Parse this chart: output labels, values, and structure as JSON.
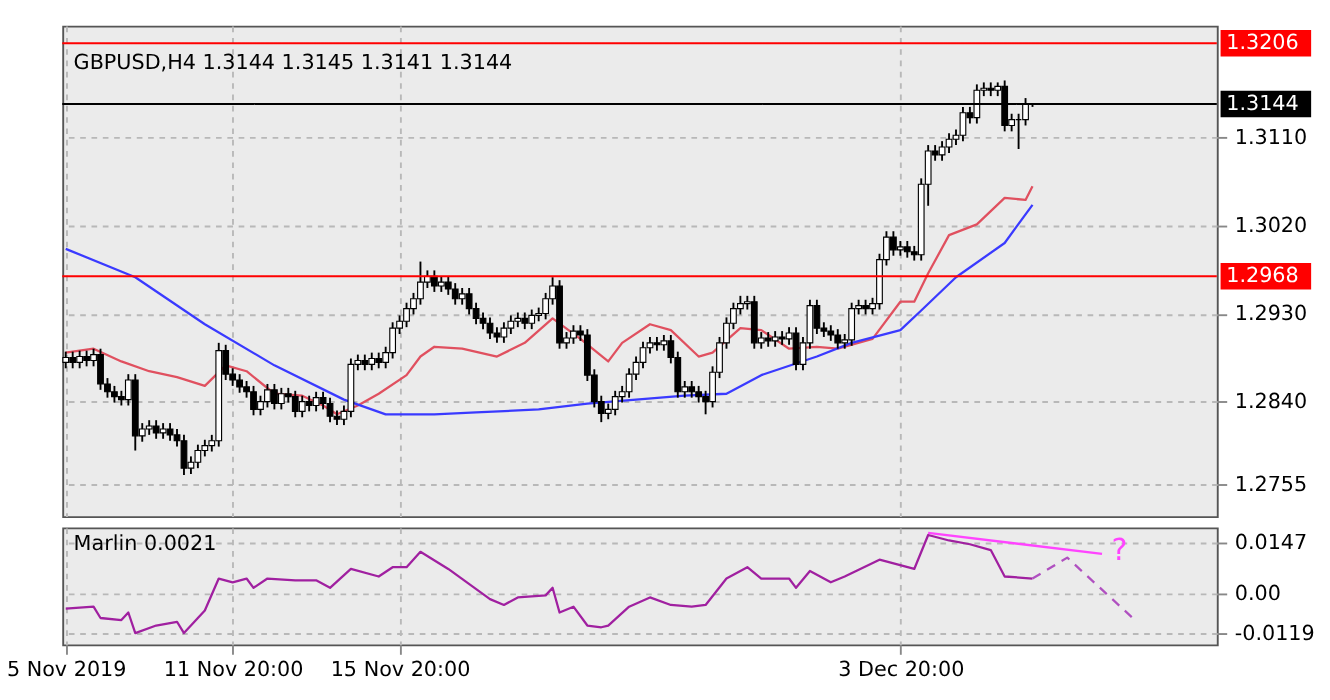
{
  "chart_data": [
    {
      "type": "candlestick",
      "title": "GBPUSD,H4  1.3144 1.3145 1.3141 1.3144",
      "categories": [
        null,
        null,
        null,
        null,
        null,
        null,
        null,
        null,
        null,
        null,
        null,
        null,
        null,
        null,
        null,
        null,
        null,
        null,
        null,
        null,
        null,
        null,
        null,
        null,
        null,
        null,
        null,
        null,
        null,
        null,
        null,
        null,
        null,
        null,
        null,
        null,
        null,
        null,
        null,
        null,
        null,
        null,
        null,
        null,
        null,
        null,
        null,
        null,
        null,
        null,
        null,
        null,
        null,
        null,
        null,
        null,
        null,
        null,
        null,
        null,
        null,
        null,
        null,
        null,
        null,
        null,
        null,
        null,
        null,
        null,
        null,
        null,
        null,
        null,
        null,
        null,
        null,
        null,
        null,
        null,
        null,
        null,
        null,
        null,
        null,
        null,
        null,
        null,
        null,
        null,
        null,
        null,
        null,
        null,
        null,
        null,
        null,
        null,
        null,
        null,
        null,
        null,
        null,
        null,
        null,
        null,
        null,
        null,
        null,
        null,
        null,
        null,
        null,
        null,
        null,
        null,
        null,
        null,
        null,
        null,
        null,
        null,
        null,
        null,
        null,
        null,
        null,
        null,
        null,
        null,
        null,
        null,
        null,
        null,
        null,
        null,
        null,
        null,
        null,
        null,
        null,
        null,
        null,
        null,
        null,
        null,
        null,
        null,
        null,
        null,
        null,
        null,
        null,
        null,
        null,
        null,
        null,
        null,
        null,
        null,
        null,
        null,
        null,
        null,
        null,
        null
      ],
      "ohlc": [
        [
          1.288,
          1.2891,
          1.2874,
          1.2885
        ],
        [
          1.2885,
          1.2891,
          1.2874,
          1.288
        ],
        [
          1.288,
          1.2892,
          1.2874,
          1.2886
        ],
        [
          1.2886,
          1.2892,
          1.2876,
          1.2882
        ],
        [
          1.2882,
          1.2894,
          1.2876,
          1.2888
        ],
        [
          1.2888,
          1.2894,
          1.2852,
          1.2858
        ],
        [
          1.2858,
          1.2864,
          1.2844,
          1.285
        ],
        [
          1.285,
          1.2856,
          1.2839,
          1.2845
        ],
        [
          1.2845,
          1.2851,
          1.2836,
          1.2842
        ],
        [
          1.2842,
          1.2868,
          1.2836,
          1.2862
        ],
        [
          1.2862,
          1.2868,
          1.279,
          1.2805
        ],
        [
          1.2805,
          1.2818,
          1.2799,
          1.2812
        ],
        [
          1.2812,
          1.2821,
          1.2806,
          1.2815
        ],
        [
          1.2815,
          1.2821,
          1.2802,
          1.2808
        ],
        [
          1.2808,
          1.2818,
          1.2802,
          1.2812
        ],
        [
          1.2812,
          1.2818,
          1.28,
          1.2806
        ],
        [
          1.2806,
          1.2812,
          1.2794,
          1.28
        ],
        [
          1.28,
          1.2806,
          1.2765,
          1.2772
        ],
        [
          1.2772,
          1.2784,
          1.2766,
          1.2778
        ],
        [
          1.2778,
          1.2796,
          1.2772,
          1.279
        ],
        [
          1.279,
          1.2801,
          1.2784,
          1.2795
        ],
        [
          1.2795,
          1.2806,
          1.2789,
          1.28
        ],
        [
          1.28,
          1.29,
          1.2794,
          1.2892
        ],
        [
          1.2892,
          1.2898,
          1.2862,
          1.2868
        ],
        [
          1.2868,
          1.2874,
          1.2856,
          1.2862
        ],
        [
          1.2862,
          1.2868,
          1.2849,
          1.2855
        ],
        [
          1.2855,
          1.2861,
          1.2844,
          1.285
        ],
        [
          1.285,
          1.2856,
          1.2826,
          1.2832
        ],
        [
          1.2832,
          1.2846,
          1.2826,
          1.284
        ],
        [
          1.284,
          1.2858,
          1.2834,
          1.2852
        ],
        [
          1.2852,
          1.2858,
          1.2832,
          1.2838
        ],
        [
          1.2838,
          1.2854,
          1.2832,
          1.2848
        ],
        [
          1.2848,
          1.2854,
          1.2839,
          1.2845
        ],
        [
          1.2845,
          1.2851,
          1.2824,
          1.283
        ],
        [
          1.283,
          1.2846,
          1.2824,
          1.284
        ],
        [
          1.284,
          1.2846,
          1.283,
          1.2836
        ],
        [
          1.2836,
          1.285,
          1.283,
          1.2844
        ],
        [
          1.2844,
          1.285,
          1.2832,
          1.2838
        ],
        [
          1.2838,
          1.2844,
          1.2819,
          1.2825
        ],
        [
          1.2825,
          1.2831,
          1.2816,
          1.2822
        ],
        [
          1.2822,
          1.2836,
          1.2816,
          1.283
        ],
        [
          1.283,
          1.2884,
          1.2824,
          1.2878
        ],
        [
          1.2878,
          1.2888,
          1.2872,
          1.2882
        ],
        [
          1.2882,
          1.2888,
          1.2872,
          1.2878
        ],
        [
          1.2878,
          1.289,
          1.2872,
          1.2884
        ],
        [
          1.2884,
          1.289,
          1.2874,
          1.288
        ],
        [
          1.288,
          1.2896,
          1.2874,
          1.289
        ],
        [
          1.289,
          1.2921,
          1.2884,
          1.2915
        ],
        [
          1.2915,
          1.2928,
          1.2909,
          1.2922
        ],
        [
          1.2922,
          1.2941,
          1.2916,
          1.2935
        ],
        [
          1.2935,
          1.2951,
          1.2929,
          1.2945
        ],
        [
          1.2945,
          1.2983,
          1.2939,
          1.2962
        ],
        [
          1.2962,
          1.2974,
          1.2956,
          1.2968
        ],
        [
          1.2968,
          1.2974,
          1.2952,
          1.2958
        ],
        [
          1.2958,
          1.2968,
          1.2952,
          1.2962
        ],
        [
          1.2962,
          1.2968,
          1.2949,
          1.2955
        ],
        [
          1.2955,
          1.2961,
          1.2939,
          1.2945
        ],
        [
          1.2945,
          1.2956,
          1.2939,
          1.295
        ],
        [
          1.295,
          1.2956,
          1.2929,
          1.2935
        ],
        [
          1.2935,
          1.2941,
          1.2919,
          1.2925
        ],
        [
          1.2925,
          1.2931,
          1.2914,
          1.292
        ],
        [
          1.292,
          1.2926,
          1.2904,
          1.291
        ],
        [
          1.291,
          1.2916,
          1.29,
          1.2906
        ],
        [
          1.2906,
          1.2921,
          1.29,
          1.2915
        ],
        [
          1.2915,
          1.2928,
          1.2909,
          1.2922
        ],
        [
          1.2922,
          1.2931,
          1.2916,
          1.2925
        ],
        [
          1.2925,
          1.2931,
          1.2914,
          1.292
        ],
        [
          1.292,
          1.2934,
          1.2914,
          1.2928
        ],
        [
          1.2928,
          1.2936,
          1.2922,
          1.293
        ],
        [
          1.293,
          1.2951,
          1.2924,
          1.2945
        ],
        [
          1.2945,
          1.2967,
          1.2939,
          1.2958
        ],
        [
          1.2958,
          1.2964,
          1.2894,
          1.29
        ],
        [
          1.29,
          1.2911,
          1.2894,
          1.2905
        ],
        [
          1.2905,
          1.2918,
          1.2899,
          1.2912
        ],
        [
          1.2912,
          1.2918,
          1.2902,
          1.2908
        ],
        [
          1.2908,
          1.2914,
          1.2861,
          1.2867
        ],
        [
          1.2867,
          1.2873,
          1.2834,
          1.284
        ],
        [
          1.284,
          1.2846,
          1.2819,
          1.2828
        ],
        [
          1.2828,
          1.2838,
          1.2822,
          1.2832
        ],
        [
          1.2832,
          1.2851,
          1.2826,
          1.2845
        ],
        [
          1.2845,
          1.2856,
          1.2839,
          1.285
        ],
        [
          1.285,
          1.2874,
          1.2844,
          1.2868
        ],
        [
          1.2868,
          1.2886,
          1.2862,
          1.288
        ],
        [
          1.288,
          1.2901,
          1.2874,
          1.2895
        ],
        [
          1.2895,
          1.2906,
          1.2889,
          1.29
        ],
        [
          1.29,
          1.2906,
          1.2892,
          1.2898
        ],
        [
          1.2898,
          1.2908,
          1.2892,
          1.2902
        ],
        [
          1.2902,
          1.2908,
          1.2879,
          1.2885
        ],
        [
          1.2885,
          1.2891,
          1.2844,
          1.285
        ],
        [
          1.285,
          1.2861,
          1.2844,
          1.2855
        ],
        [
          1.2855,
          1.2861,
          1.2844,
          1.285
        ],
        [
          1.285,
          1.2856,
          1.2839,
          1.2845
        ],
        [
          1.2845,
          1.2851,
          1.2827,
          1.284
        ],
        [
          1.284,
          1.2876,
          1.2834,
          1.287
        ],
        [
          1.287,
          1.2906,
          1.2864,
          1.29
        ],
        [
          1.29,
          1.2926,
          1.2894,
          1.292
        ],
        [
          1.292,
          1.2941,
          1.2914,
          1.2935
        ],
        [
          1.2935,
          1.2948,
          1.2929,
          1.294
        ],
        [
          1.294,
          1.2948,
          1.2934,
          1.2942
        ],
        [
          1.2942,
          1.2948,
          1.2894,
          1.29
        ],
        [
          1.29,
          1.2911,
          1.2894,
          1.2905
        ],
        [
          1.2905,
          1.2911,
          1.2896,
          1.2902
        ],
        [
          1.2902,
          1.2912,
          1.2896,
          1.2906
        ],
        [
          1.2906,
          1.2912,
          1.2898,
          1.2904
        ],
        [
          1.2904,
          1.2916,
          1.2898,
          1.291
        ],
        [
          1.291,
          1.2916,
          1.2872,
          1.2878
        ],
        [
          1.2878,
          1.2906,
          1.2872,
          1.29
        ],
        [
          1.29,
          1.2944,
          1.2894,
          1.2938
        ],
        [
          1.2938,
          1.2944,
          1.2909,
          1.2915
        ],
        [
          1.2915,
          1.2921,
          1.2906,
          1.2912
        ],
        [
          1.2912,
          1.2918,
          1.2902,
          1.2908
        ],
        [
          1.2908,
          1.2914,
          1.2894,
          1.29
        ],
        [
          1.29,
          1.2909,
          1.2894,
          1.2903
        ],
        [
          1.2903,
          1.2941,
          1.2897,
          1.2935
        ],
        [
          1.2935,
          1.2944,
          1.2929,
          1.2938
        ],
        [
          1.2938,
          1.2944,
          1.2929,
          1.2935
        ],
        [
          1.2935,
          1.2946,
          1.2929,
          1.294
        ],
        [
          1.294,
          1.2991,
          1.2934,
          1.2985
        ],
        [
          1.2985,
          1.3014,
          1.2979,
          1.3008
        ],
        [
          1.3008,
          1.3014,
          1.2989,
          1.2995
        ],
        [
          1.2995,
          1.3004,
          1.2989,
          1.2998
        ],
        [
          1.2998,
          1.3004,
          1.2987,
          1.2993
        ],
        [
          1.2993,
          1.2999,
          1.2984,
          1.299
        ],
        [
          1.299,
          1.3068,
          1.2984,
          1.3062
        ],
        [
          1.3062,
          1.3102,
          1.304,
          1.3096
        ],
        [
          1.3096,
          1.3102,
          1.3086,
          1.3092
        ],
        [
          1.3092,
          1.3106,
          1.3086,
          1.31
        ],
        [
          1.31,
          1.3114,
          1.3094,
          1.3108
        ],
        [
          1.3108,
          1.3118,
          1.3102,
          1.3112
        ],
        [
          1.3112,
          1.3141,
          1.3106,
          1.3135
        ],
        [
          1.3135,
          1.3141,
          1.3124,
          1.313
        ],
        [
          1.313,
          1.3164,
          1.3124,
          1.3158
        ],
        [
          1.3158,
          1.3166,
          1.3152,
          1.316
        ],
        [
          1.316,
          1.3166,
          1.3152,
          1.3158
        ],
        [
          1.3158,
          1.3166,
          1.3152,
          1.3162
        ],
        [
          1.3162,
          1.3168,
          1.3116,
          1.3122
        ],
        [
          1.3122,
          1.3134,
          1.3116,
          1.3128
        ],
        [
          1.3128,
          1.3134,
          1.3098,
          1.3128
        ],
        [
          1.3128,
          1.315,
          1.3122,
          1.3144
        ],
        [
          1.3144,
          1.3145,
          1.3141,
          1.3144
        ],
        null,
        null,
        null,
        null,
        null,
        null,
        null,
        null,
        null,
        null,
        null,
        null,
        null,
        null,
        null,
        null,
        null,
        null,
        null,
        null,
        null,
        null,
        null,
        null,
        null,
        null
      ],
      "series": [
        {
          "type": "line",
          "color": "#e0505f",
          "values": [
            1.289,
            null,
            null,
            null,
            1.2894,
            null,
            null,
            null,
            1.2881,
            null,
            null,
            null,
            1.2871,
            null,
            null,
            null,
            1.2865,
            null,
            null,
            null,
            1.2856,
            null,
            null,
            1.2877,
            null,
            null,
            1.2871,
            null,
            null,
            null,
            1.2848,
            null,
            null,
            null,
            1.2846,
            null,
            null,
            1.2836,
            null,
            1.2827,
            null,
            null,
            1.2836,
            null,
            null,
            1.2848,
            null,
            null,
            null,
            1.2867,
            null,
            1.2886,
            null,
            1.2896,
            null,
            null,
            null,
            1.2894,
            null,
            null,
            null,
            null,
            1.2886,
            null,
            null,
            null,
            1.29,
            null,
            null,
            null,
            1.2925,
            null,
            null,
            null,
            1.2904,
            null,
            null,
            null,
            1.2881,
            null,
            1.29,
            null,
            null,
            null,
            1.2919,
            null,
            null,
            1.2913,
            null,
            null,
            null,
            1.2886,
            null,
            1.289,
            null,
            null,
            null,
            1.2915,
            null,
            null,
            1.2913,
            null,
            null,
            null,
            1.2894,
            null,
            null,
            null,
            1.2896,
            null,
            null,
            1.2894,
            null,
            null,
            null,
            null,
            1.2904,
            null,
            null,
            null,
            1.2942,
            null,
            1.2942,
            null,
            1.2971,
            null,
            null,
            1.301,
            null,
            null,
            null,
            1.3021,
            null,
            null,
            null,
            1.3048,
            null,
            null,
            1.3046,
            1.306,
            null,
            null,
            null,
            null,
            null,
            null,
            null,
            null,
            null,
            null,
            null,
            null,
            null,
            null,
            null,
            null,
            null,
            null,
            null,
            null,
            null,
            null,
            null,
            null,
            null,
            null
          ]
        },
        {
          "type": "line",
          "color": "#3a3aff",
          "values": [
            1.2996,
            null,
            null,
            null,
            null,
            null,
            null,
            null,
            null,
            null,
            1.2967,
            null,
            null,
            null,
            null,
            null,
            null,
            null,
            null,
            null,
            1.2919,
            null,
            null,
            null,
            null,
            null,
            null,
            null,
            null,
            null,
            1.2877,
            null,
            null,
            null,
            null,
            null,
            null,
            null,
            null,
            null,
            1.2842,
            null,
            null,
            null,
            null,
            null,
            1.2827,
            null,
            null,
            null,
            null,
            null,
            null,
            1.2827,
            null,
            null,
            null,
            null,
            null,
            1.2829,
            null,
            null,
            null,
            null,
            null,
            null,
            null,
            null,
            1.2832,
            null,
            null,
            null,
            null,
            null,
            null,
            1.2838,
            null,
            null,
            null,
            null,
            null,
            null,
            1.2842,
            null,
            null,
            null,
            null,
            null,
            null,
            1.2846,
            null,
            null,
            null,
            null,
            null,
            1.2848,
            null,
            null,
            null,
            null,
            1.2867,
            null,
            null,
            null,
            null,
            null,
            null,
            null,
            1.2886,
            null,
            null,
            null,
            null,
            1.29,
            null,
            null,
            null,
            null,
            null,
            null,
            1.2913,
            null,
            null,
            1.2933,
            null,
            null,
            null,
            null,
            1.2967,
            null,
            null,
            null,
            null,
            null,
            null,
            1.3002,
            null,
            null,
            null,
            1.3041,
            null,
            null,
            null,
            null,
            null,
            null,
            null,
            null,
            null,
            null,
            null,
            null,
            null,
            null,
            null,
            null,
            null,
            null,
            null,
            null,
            null,
            null,
            null,
            null,
            null,
            null
          ]
        }
      ],
      "ylim": [
        1.2723,
        1.3224
      ],
      "yticks": [
        1.2755,
        {
          "value": 1.284,
          "label": "1.2840"
        },
        {
          "value": 1.293,
          "label": "1.2930"
        },
        {
          "value": 1.302,
          "label": "1.3020"
        },
        {
          "value": 1.311,
          "label": "1.3110"
        }
      ],
      "ref_lines": [
        {
          "axis": "y",
          "value": 1.3206,
          "label": "1.3206",
          "color": "#ff0000"
        },
        {
          "axis": "y",
          "value": 1.2968,
          "label": "1.2968",
          "color": "#ff0000"
        },
        {
          "axis": "y",
          "value": 1.3144,
          "label": "1.3144",
          "color": "#000000"
        }
      ],
      "grid": true,
      "tick_labels": "y"
    },
    {
      "type": "line",
      "title": "Marlin 0.0021",
      "categories": [
        "5 Nov 2019",
        null,
        null,
        null,
        null,
        null,
        null,
        null,
        null,
        null,
        null,
        null,
        null,
        null,
        null,
        null,
        null,
        null,
        null,
        null,
        null,
        null,
        null,
        null,
        "11 Nov 20:00",
        null,
        null,
        null,
        null,
        null,
        null,
        null,
        null,
        null,
        null,
        null,
        null,
        null,
        null,
        null,
        null,
        null,
        null,
        null,
        null,
        null,
        null,
        null,
        "15 Nov 20:00",
        null,
        null,
        null,
        null,
        null,
        null,
        null,
        null,
        null,
        null,
        null,
        null,
        null,
        null,
        null,
        null,
        null,
        null,
        null,
        null,
        null,
        null,
        null,
        null,
        null,
        null,
        null,
        null,
        null,
        null,
        null,
        null,
        null,
        null,
        null,
        null,
        null,
        null,
        null,
        null,
        null,
        null,
        null,
        null,
        null,
        null,
        null,
        null,
        null,
        null,
        null,
        null,
        null,
        null,
        null,
        null,
        null,
        null,
        null,
        null,
        null,
        null,
        null,
        null,
        null,
        null,
        null,
        null,
        null,
        null,
        null,
        "3 Dec 20:00",
        null,
        null,
        null,
        null,
        null,
        null,
        null,
        null,
        null,
        null,
        null,
        null,
        null,
        null,
        null,
        null,
        null,
        null,
        null,
        null,
        null,
        null,
        null,
        null,
        null,
        null,
        null,
        null,
        null,
        null,
        null,
        null,
        null,
        null,
        null,
        null,
        null,
        null,
        null,
        null,
        null,
        null,
        null,
        null,
        null
      ],
      "series": [
        {
          "color": "#a020a0",
          "values": [
            -0.0046,
            null,
            null,
            null,
            -0.004,
            -0.0073,
            null,
            null,
            -0.0079,
            -0.0057,
            -0.0117,
            null,
            null,
            -0.0095,
            null,
            null,
            -0.0084,
            -0.0117,
            null,
            null,
            -0.0051,
            null,
            0.0042,
            null,
            0.0031,
            null,
            0.0042,
            0.0015,
            null,
            0.0042,
            null,
            null,
            null,
            0.0037,
            null,
            null,
            0.0037,
            null,
            0.0015,
            null,
            null,
            0.007,
            null,
            null,
            null,
            0.0048,
            null,
            0.0075,
            null,
            0.0075,
            null,
            0.012,
            null,
            null,
            null,
            0.007,
            null,
            null,
            null,
            null,
            null,
            -0.0018,
            null,
            -0.0035,
            null,
            -0.0013,
            null,
            null,
            null,
            -0.0007,
            0.0015,
            -0.0057,
            null,
            -0.004,
            null,
            -0.0095,
            null,
            -0.01,
            -0.0095,
            null,
            null,
            -0.004,
            null,
            null,
            -0.0013,
            null,
            null,
            -0.0035,
            null,
            null,
            -0.004,
            null,
            -0.0035,
            null,
            null,
            0.0042,
            null,
            null,
            0.0075,
            null,
            0.0042,
            null,
            null,
            null,
            0.0042,
            0.0015,
            null,
            0.0064,
            null,
            null,
            0.0031,
            null,
            0.0048,
            null,
            null,
            null,
            null,
            0.0097,
            null,
            null,
            null,
            null,
            0.007,
            null,
            0.0169,
            null,
            null,
            0.0153,
            null,
            null,
            0.0142,
            null,
            null,
            0.0125,
            null,
            0.0048,
            null,
            null,
            null,
            0.0042,
            null,
            null,
            null,
            null,
            null,
            null,
            null,
            null,
            null,
            null,
            null,
            null,
            null,
            null,
            null,
            null,
            null,
            null,
            null,
            null,
            null,
            null,
            null,
            null,
            null,
            null
          ]
        },
        {
          "color": "#ff44ff",
          "values": [
            null,
            null,
            null,
            null,
            null,
            null,
            null,
            null,
            null,
            null,
            null,
            null,
            null,
            null,
            null,
            null,
            null,
            null,
            null,
            null,
            null,
            null,
            null,
            null,
            null,
            null,
            null,
            null,
            null,
            null,
            null,
            null,
            null,
            null,
            null,
            null,
            null,
            null,
            null,
            null,
            null,
            null,
            null,
            null,
            null,
            null,
            null,
            null,
            null,
            null,
            null,
            null,
            null,
            null,
            null,
            null,
            null,
            null,
            null,
            null,
            null,
            null,
            null,
            null,
            null,
            null,
            null,
            null,
            null,
            null,
            null,
            null,
            null,
            null,
            null,
            null,
            null,
            null,
            null,
            null,
            null,
            null,
            null,
            null,
            null,
            null,
            null,
            null,
            null,
            null,
            null,
            null,
            null,
            null,
            null,
            null,
            null,
            null,
            null,
            null,
            null,
            null,
            null,
            null,
            null,
            null,
            null,
            null,
            null,
            null,
            null,
            null,
            null,
            null,
            null,
            null,
            null,
            null,
            null,
            null,
            null,
            null,
            null,
            null,
            0.0175,
            null,
            null,
            null,
            null,
            null,
            null,
            null,
            null,
            null,
            null,
            null,
            null,
            null,
            null,
            null,
            null,
            null,
            null,
            null,
            null,
            null,
            null,
            null,
            null,
            0.0114,
            null,
            null,
            null,
            null,
            null,
            null,
            null,
            null,
            null,
            null,
            null,
            null,
            null,
            null,
            null,
            null
          ]
        },
        {
          "color": "#b050c0",
          "line_style": "dashed",
          "values": [
            null,
            null,
            null,
            null,
            null,
            null,
            null,
            null,
            null,
            null,
            null,
            null,
            null,
            null,
            null,
            null,
            null,
            null,
            null,
            null,
            null,
            null,
            null,
            null,
            null,
            null,
            null,
            null,
            null,
            null,
            null,
            null,
            null,
            null,
            null,
            null,
            null,
            null,
            null,
            null,
            null,
            null,
            null,
            null,
            null,
            null,
            null,
            null,
            null,
            null,
            null,
            null,
            null,
            null,
            null,
            null,
            null,
            null,
            null,
            null,
            null,
            null,
            null,
            null,
            null,
            null,
            null,
            null,
            null,
            null,
            null,
            null,
            null,
            null,
            null,
            null,
            null,
            null,
            null,
            null,
            null,
            null,
            null,
            null,
            null,
            null,
            null,
            null,
            null,
            null,
            null,
            null,
            null,
            null,
            null,
            null,
            null,
            null,
            null,
            null,
            null,
            null,
            null,
            null,
            null,
            null,
            null,
            null,
            null,
            null,
            null,
            null,
            null,
            null,
            null,
            null,
            null,
            null,
            null,
            null,
            null,
            null,
            null,
            null,
            null,
            null,
            null,
            null,
            null,
            null,
            null,
            null,
            null,
            null,
            null,
            null,
            null,
            null,
            null,
            0.0042,
            null,
            null,
            null,
            null,
            0.0103,
            null,
            null,
            null,
            null,
            null,
            null,
            null,
            null,
            null,
            -0.0084,
            null,
            null,
            null,
            null,
            null,
            null,
            null,
            null,
            null,
            null,
            null
          ]
        }
      ],
      "annotations": [
        "?"
      ],
      "ylim": [
        -0.015,
        0.0191
      ],
      "yticks": [
        0.0147,
        {
          "value": 0,
          "label": "0.00"
        },
        -0.0119
      ],
      "grid": true
    }
  ]
}
